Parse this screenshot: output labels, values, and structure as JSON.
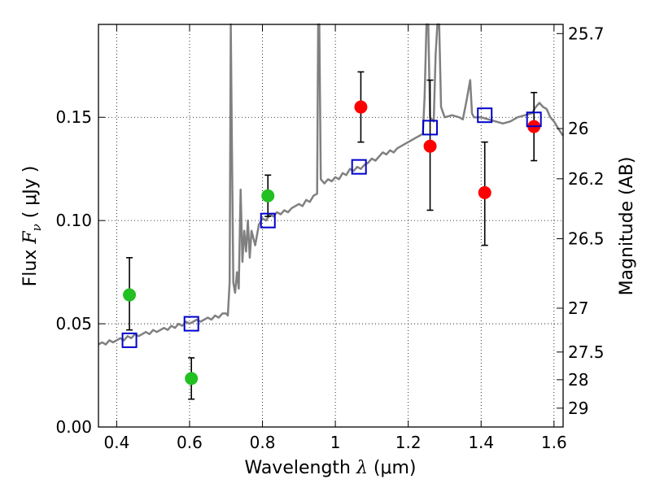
{
  "chart_data": {
    "type": "scatter",
    "xlabel": {
      "prefix": "Wavelength  ",
      "symbol": "λ",
      "unit": " (μm)"
    },
    "ylabel": {
      "prefix": "Flux  ",
      "symbol": "F",
      "sub": "ν",
      "unit": "  ( μJy )"
    },
    "y2label": "Magnitude (AB)",
    "xlim": [
      0.35,
      1.625
    ],
    "ylim": [
      0.0,
      0.195
    ],
    "xticks": [
      {
        "value": 0.4,
        "label": "0.4"
      },
      {
        "value": 0.6,
        "label": "0.6"
      },
      {
        "value": 0.8,
        "label": "0.8"
      },
      {
        "value": 1.0,
        "label": "1"
      },
      {
        "value": 1.2,
        "label": "1.2"
      },
      {
        "value": 1.4,
        "label": "1.4"
      },
      {
        "value": 1.6,
        "label": "1.6"
      }
    ],
    "yticks": [
      {
        "value": 0.0,
        "label": "0.00"
      },
      {
        "value": 0.05,
        "label": "0.05"
      },
      {
        "value": 0.1,
        "label": "0.10"
      },
      {
        "value": 0.15,
        "label": "0.15"
      }
    ],
    "y2ticks": [
      {
        "mag": 25.7,
        "label": "25.7"
      },
      {
        "mag": 26,
        "label": "26"
      },
      {
        "mag": 26.2,
        "label": "26.2"
      },
      {
        "mag": 26.5,
        "label": "26.5"
      },
      {
        "mag": 27,
        "label": "27"
      },
      {
        "mag": 27.5,
        "label": "27.5"
      },
      {
        "mag": 28,
        "label": "28"
      },
      {
        "mag": 29,
        "label": "29"
      }
    ],
    "grid": true,
    "colors": {
      "spectrum": "#808080",
      "green": "#22c022",
      "red": "#ff0000",
      "model": "#0000cc",
      "errorbar": "#000000"
    },
    "series": [
      {
        "kind": "line",
        "role": "spectrum",
        "points": [
          [
            0.35,
            0.04
          ],
          [
            0.36,
            0.041
          ],
          [
            0.37,
            0.04
          ],
          [
            0.38,
            0.042
          ],
          [
            0.39,
            0.041
          ],
          [
            0.4,
            0.042
          ],
          [
            0.41,
            0.043
          ],
          [
            0.42,
            0.042
          ],
          [
            0.43,
            0.044
          ],
          [
            0.44,
            0.043
          ],
          [
            0.45,
            0.045
          ],
          [
            0.46,
            0.044
          ],
          [
            0.47,
            0.045
          ],
          [
            0.48,
            0.046
          ],
          [
            0.49,
            0.045
          ],
          [
            0.5,
            0.047
          ],
          [
            0.51,
            0.046
          ],
          [
            0.52,
            0.047
          ],
          [
            0.53,
            0.048
          ],
          [
            0.54,
            0.047
          ],
          [
            0.55,
            0.049
          ],
          [
            0.56,
            0.048
          ],
          [
            0.57,
            0.05
          ],
          [
            0.58,
            0.049
          ],
          [
            0.59,
            0.051
          ],
          [
            0.6,
            0.05
          ],
          [
            0.61,
            0.051
          ],
          [
            0.62,
            0.052
          ],
          [
            0.63,
            0.051
          ],
          [
            0.64,
            0.052
          ],
          [
            0.65,
            0.053
          ],
          [
            0.66,
            0.052
          ],
          [
            0.67,
            0.054
          ],
          [
            0.68,
            0.053
          ],
          [
            0.69,
            0.055
          ],
          [
            0.7,
            0.055
          ],
          [
            0.705,
            0.054
          ],
          [
            0.71,
            0.07
          ],
          [
            0.713,
            0.195
          ],
          [
            0.716,
            0.14
          ],
          [
            0.72,
            0.07
          ],
          [
            0.725,
            0.065
          ],
          [
            0.73,
            0.075
          ],
          [
            0.735,
            0.067
          ],
          [
            0.74,
            0.115
          ],
          [
            0.745,
            0.08
          ],
          [
            0.75,
            0.095
          ],
          [
            0.755,
            0.085
          ],
          [
            0.76,
            0.1
          ],
          [
            0.765,
            0.082
          ],
          [
            0.77,
            0.095
          ],
          [
            0.78,
            0.088
          ],
          [
            0.79,
            0.098
          ],
          [
            0.8,
            0.101
          ],
          [
            0.81,
            0.1
          ],
          [
            0.82,
            0.103
          ],
          [
            0.83,
            0.102
          ],
          [
            0.84,
            0.104
          ],
          [
            0.85,
            0.103
          ],
          [
            0.86,
            0.105
          ],
          [
            0.87,
            0.104
          ],
          [
            0.88,
            0.106
          ],
          [
            0.89,
            0.107
          ],
          [
            0.9,
            0.108
          ],
          [
            0.91,
            0.107
          ],
          [
            0.92,
            0.11
          ],
          [
            0.93,
            0.109
          ],
          [
            0.94,
            0.112
          ],
          [
            0.95,
            0.113
          ],
          [
            0.953,
            0.195
          ],
          [
            0.956,
            0.195
          ],
          [
            0.96,
            0.12
          ],
          [
            0.97,
            0.118
          ],
          [
            0.98,
            0.12
          ],
          [
            0.99,
            0.119
          ],
          [
            1.0,
            0.121
          ],
          [
            1.01,
            0.12
          ],
          [
            1.02,
            0.123
          ],
          [
            1.03,
            0.122
          ],
          [
            1.04,
            0.125
          ],
          [
            1.05,
            0.124
          ],
          [
            1.06,
            0.126
          ],
          [
            1.07,
            0.125
          ],
          [
            1.08,
            0.127
          ],
          [
            1.09,
            0.128
          ],
          [
            1.1,
            0.13
          ],
          [
            1.11,
            0.129
          ],
          [
            1.12,
            0.131
          ],
          [
            1.13,
            0.133
          ],
          [
            1.14,
            0.132
          ],
          [
            1.15,
            0.134
          ],
          [
            1.16,
            0.133
          ],
          [
            1.17,
            0.135
          ],
          [
            1.18,
            0.136
          ],
          [
            1.19,
            0.137
          ],
          [
            1.2,
            0.138
          ],
          [
            1.21,
            0.139
          ],
          [
            1.22,
            0.14
          ],
          [
            1.23,
            0.141
          ],
          [
            1.24,
            0.142
          ],
          [
            1.245,
            0.16
          ],
          [
            1.25,
            0.195
          ],
          [
            1.255,
            0.195
          ],
          [
            1.26,
            0.15
          ],
          [
            1.27,
            0.148
          ],
          [
            1.275,
            0.18
          ],
          [
            1.28,
            0.195
          ],
          [
            1.285,
            0.195
          ],
          [
            1.29,
            0.155
          ],
          [
            1.3,
            0.15
          ],
          [
            1.32,
            0.151
          ],
          [
            1.34,
            0.15
          ],
          [
            1.35,
            0.149
          ],
          [
            1.36,
            0.158
          ],
          [
            1.37,
            0.168
          ],
          [
            1.375,
            0.152
          ],
          [
            1.38,
            0.15
          ],
          [
            1.4,
            0.15
          ],
          [
            1.42,
            0.149
          ],
          [
            1.44,
            0.148
          ],
          [
            1.46,
            0.147
          ],
          [
            1.48,
            0.148
          ],
          [
            1.5,
            0.15
          ],
          [
            1.52,
            0.151
          ],
          [
            1.54,
            0.152
          ],
          [
            1.55,
            0.155
          ],
          [
            1.56,
            0.157
          ],
          [
            1.57,
            0.155
          ],
          [
            1.58,
            0.154
          ],
          [
            1.59,
            0.15
          ],
          [
            1.6,
            0.148
          ],
          [
            1.61,
            0.145
          ],
          [
            1.625,
            0.141
          ]
        ]
      },
      {
        "kind": "points",
        "role": "green",
        "points": [
          {
            "x": 0.435,
            "y": 0.064,
            "err": [
              0.047,
              0.082
            ]
          },
          {
            "x": 0.605,
            "y": 0.0235,
            "err": [
              0.0135,
              0.0335
            ]
          },
          {
            "x": 0.815,
            "y": 0.112,
            "err": [
              0.102,
              0.122
            ]
          }
        ]
      },
      {
        "kind": "points",
        "role": "red",
        "points": [
          {
            "x": 1.07,
            "y": 0.155,
            "err": [
              0.138,
              0.172
            ]
          },
          {
            "x": 1.26,
            "y": 0.136,
            "err": [
              0.105,
              0.168
            ]
          },
          {
            "x": 1.41,
            "y": 0.1135,
            "err": [
              0.088,
              0.138
            ]
          },
          {
            "x": 1.545,
            "y": 0.1455,
            "err": [
              0.129,
              0.162
            ]
          }
        ]
      },
      {
        "kind": "squares",
        "role": "model",
        "points": [
          {
            "x": 0.435,
            "y": 0.042
          },
          {
            "x": 0.605,
            "y": 0.05
          },
          {
            "x": 0.815,
            "y": 0.1
          },
          {
            "x": 1.065,
            "y": 0.126
          },
          {
            "x": 1.26,
            "y": 0.145
          },
          {
            "x": 1.41,
            "y": 0.151
          },
          {
            "x": 1.545,
            "y": 0.149
          }
        ]
      }
    ]
  }
}
